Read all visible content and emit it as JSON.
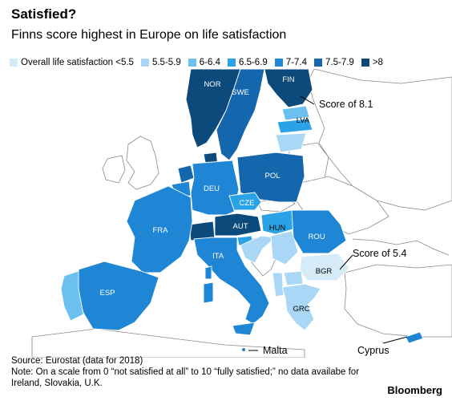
{
  "header": {
    "title": "Satisfied?",
    "subtitle": "Finns score highest in Europe on life satisfaction"
  },
  "legend": [
    {
      "label": "Overall life satisfaction <5.5",
      "color": "#d6ebf8"
    },
    {
      "label": "5.5-5.9",
      "color": "#a9d7f5"
    },
    {
      "label": "6-6.4",
      "color": "#6cc0f0"
    },
    {
      "label": "6.5-6.9",
      "color": "#2aa3e6"
    },
    {
      "label": "7-7.4",
      "color": "#1e86d4"
    },
    {
      "label": "7.5-7.9",
      "color": "#1466ad"
    },
    {
      "label": ">8",
      "color": "#0d4a7c"
    }
  ],
  "colors": {
    "ocean": "#ffffff",
    "no_data_land": "#ffffff",
    "border": "#8a8a8a",
    "country_border": "#ffffff"
  },
  "countries": {
    "NOR": "NOR",
    "SWE": "SWE",
    "FIN": "FIN",
    "LVA": "LVA",
    "POL": "POL",
    "DEU": "DEU",
    "CZE": "CZE",
    "AUT": "AUT",
    "HUN": "HUN",
    "FRA": "FRA",
    "ROU": "ROU",
    "ITA": "ITA",
    "BGR": "BGR",
    "ESP": "ESP",
    "GRC": "GRC"
  },
  "annotations": {
    "fin_score": "Score of 8.1",
    "bgr_score": "Score of 5.4",
    "malta": "Malta",
    "cyprus": "Cyprus"
  },
  "footer": {
    "source": "Source: Eurostat (data for 2018)",
    "note": "Note: On a scale from 0 “not satisfied at all” to 10 “fully satisfied;” no data availabe for Ireland, Slovakia, U.K."
  },
  "brand": "Bloomberg"
}
